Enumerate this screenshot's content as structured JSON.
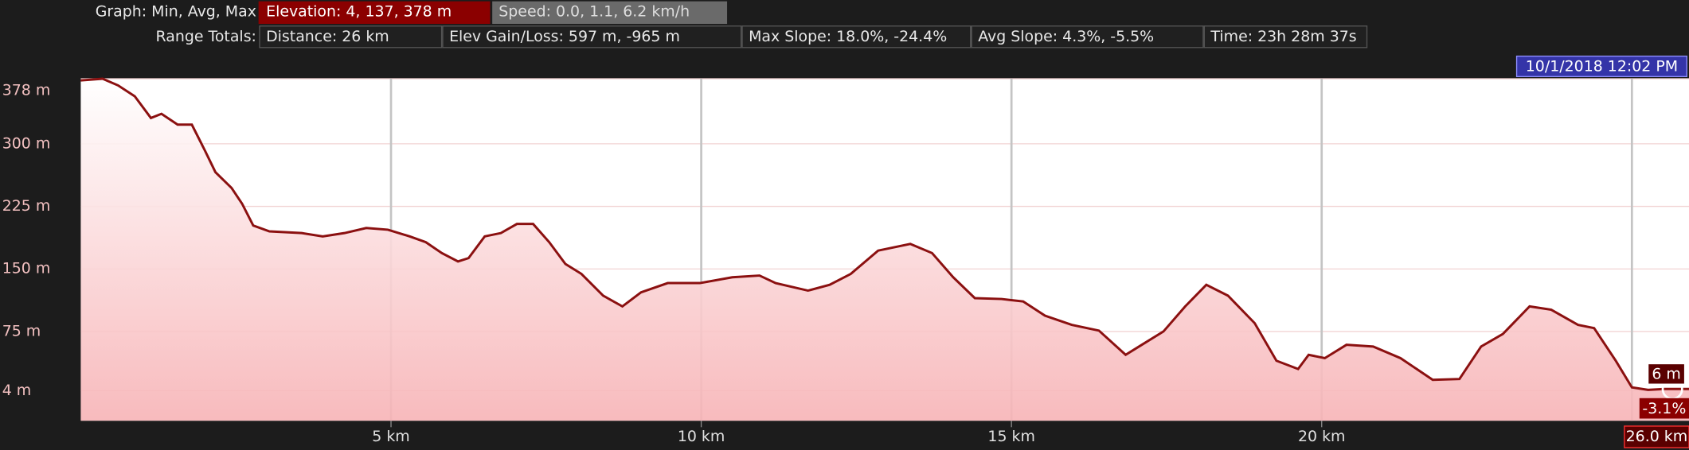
{
  "header": {
    "graph_label": "Graph: Min, Avg, Max",
    "elevation_button": "Elevation: 4, 137, 378 m",
    "speed_button": "Speed: 0.0, 1.1, 6.2 km/h",
    "range_label": "Range Totals:",
    "stats": [
      "Distance: 26 km",
      "Elev Gain/Loss: 597 m, -965 m",
      "Max Slope: 18.0%, -24.4%",
      "Avg Slope: 4.3%, -5.5%",
      "Time: 23h 28m 37s"
    ]
  },
  "chart_data": {
    "type": "area",
    "color": "#8b1010",
    "x": [
      0,
      0.35,
      0.6,
      0.87,
      1.13,
      1.3,
      1.56,
      1.79,
      2.0,
      2.17,
      2.43,
      2.6,
      2.78,
      3.04,
      3.56,
      3.9,
      4.25,
      4.6,
      4.95,
      5.3,
      5.56,
      5.82,
      6.08,
      6.25,
      6.51,
      6.77,
      7.03,
      7.29,
      7.55,
      7.81,
      8.07,
      8.42,
      8.73,
      9.03,
      9.46,
      9.98,
      10.5,
      10.94,
      11.2,
      11.72,
      12.07,
      12.41,
      12.85,
      13.37,
      13.72,
      14.06,
      14.41,
      14.84,
      15.19,
      15.54,
      15.97,
      16.41,
      16.84,
      17.1,
      17.45,
      17.8,
      18.14,
      18.49,
      18.92,
      19.27,
      19.62,
      19.79,
      20.05,
      20.4,
      20.83,
      21.27,
      21.79,
      22.22,
      22.57,
      22.92,
      23.35,
      23.7,
      24.13,
      24.39,
      24.74,
      25.0,
      25.26,
      25.52,
      26.0
    ],
    "values": [
      376,
      378,
      370,
      357,
      331,
      336,
      323,
      323,
      292,
      266,
      247,
      228,
      202,
      195,
      193,
      189,
      193,
      199,
      197,
      189,
      182,
      169,
      159,
      163,
      189,
      193,
      204,
      204,
      182,
      156,
      144,
      118,
      105,
      122,
      133,
      133,
      140,
      142,
      133,
      124,
      131,
      144,
      172,
      180,
      169,
      140,
      115,
      114,
      111,
      94,
      83,
      76,
      47,
      59,
      75,
      105,
      131,
      118,
      85,
      40,
      30,
      47,
      43,
      59,
      57,
      43,
      17,
      18,
      57,
      72,
      105,
      101,
      83,
      79,
      40,
      8,
      5,
      6,
      6
    ],
    "xlim": [
      0,
      26
    ],
    "ylim": [
      -32,
      378
    ],
    "xticks": [
      {
        "value": 5,
        "label": "5 km"
      },
      {
        "value": 10,
        "label": "10 km"
      },
      {
        "value": 15,
        "label": "15 km"
      },
      {
        "value": 20,
        "label": "20 km"
      }
    ],
    "xgrid": [
      5,
      10,
      15,
      20,
      25
    ],
    "yticks": [
      {
        "value": 4,
        "label": "4 m"
      },
      {
        "value": 75,
        "label": "75 m"
      },
      {
        "value": 150,
        "label": "150 m"
      },
      {
        "value": 225,
        "label": "225 m"
      },
      {
        "value": 300,
        "label": "300 m"
      },
      {
        "value": 378,
        "label": "378 m"
      }
    ],
    "timestamp": "10/1/2018 12:02 PM",
    "cursor": {
      "elevation_label": "6 m",
      "slope_label": "-3.1%",
      "distance_label": "26.0 km"
    }
  }
}
